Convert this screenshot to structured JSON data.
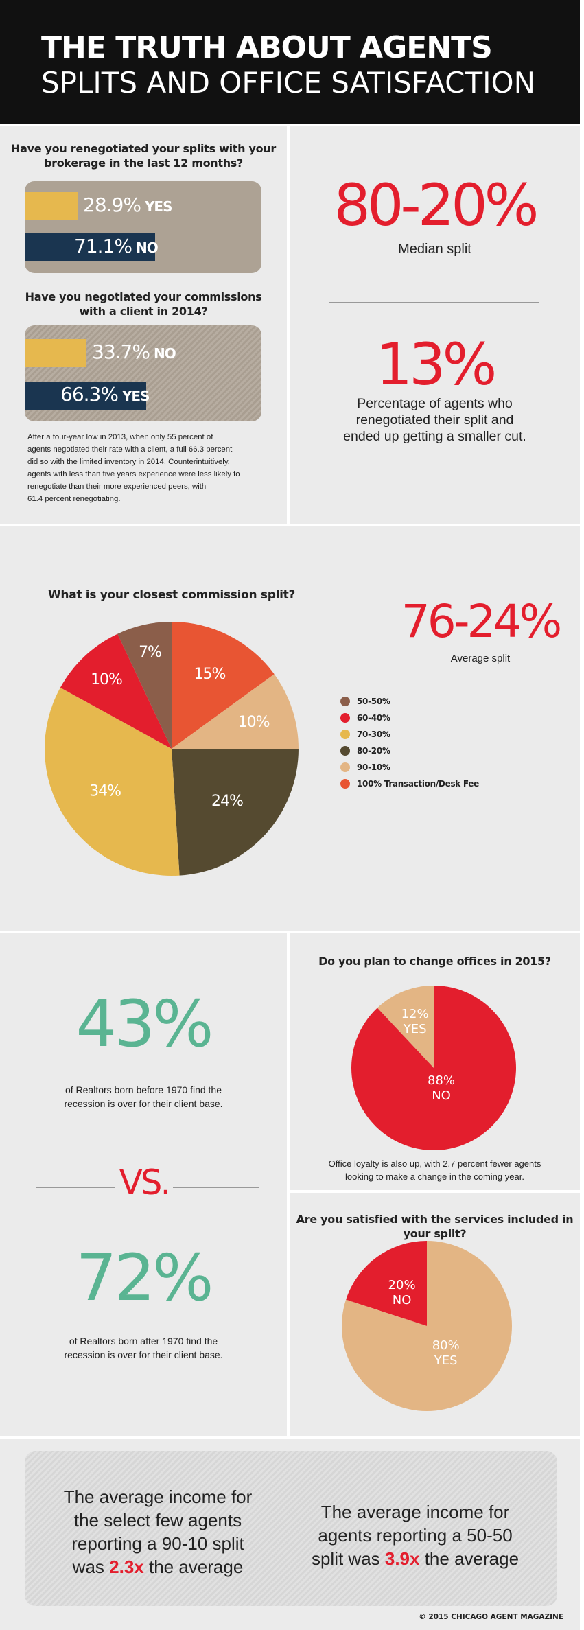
{
  "header": {
    "title_line1": "THE TRUTH ABOUT AGENTS",
    "title_line2": "SPLITS AND OFFICE SATISFACTION"
  },
  "colors": {
    "red": "#e31e2d",
    "green": "#5ab492",
    "gold": "#e6b84e",
    "navy": "#1a3550",
    "brown": "#8b5e4a",
    "olive": "#554a30",
    "tan": "#e3b584",
    "orange": "#e85533",
    "panel_bg": "#ebebeb"
  },
  "section1": {
    "q1": {
      "question_line1": "Have you renegotiated your splits with your",
      "question_line2": "brokerage in the last 12 months?",
      "yes_value": "28.9%",
      "yes_label": "YES",
      "no_value": "71.1%",
      "no_label": "NO"
    },
    "q2": {
      "question_line1": "Have you negotiated your commissions",
      "question_line2": "with a client in 2014?",
      "no_value": "33.7%",
      "no_label": "NO",
      "yes_value": "66.3%",
      "yes_label": "YES"
    },
    "note_lines": [
      "After a four-year low in 2013, when only 55 percent of",
      "agents negotiated their rate with a client, a full 66.3 percent",
      "did so with the limited inventory in 2014. Counterintuitively,",
      "agents with less than five years experience were less likely to",
      "renegotiate than their more experienced peers, with",
      "61.4 percent renegotiating."
    ],
    "median_split": "80-20%",
    "median_label": "Median split",
    "smaller_cut": "13%",
    "smaller_cut_lines": [
      "Percentage of agents who",
      "renegotiated their split and",
      "ended up getting a smaller cut."
    ]
  },
  "section2": {
    "title": "What is your closest commission split?",
    "average_split": "76-24%",
    "average_label": "Average split"
  },
  "chart_data": [
    {
      "type": "bar",
      "title": "Have you renegotiated your splits with your brokerage in the last 12 months?",
      "categories": [
        "YES",
        "NO"
      ],
      "values": [
        28.9,
        71.1
      ],
      "ylim": [
        0,
        100
      ]
    },
    {
      "type": "bar",
      "title": "Have you negotiated your commissions with a client in 2014?",
      "categories": [
        "NO",
        "YES"
      ],
      "values": [
        33.7,
        66.3
      ],
      "ylim": [
        0,
        100
      ]
    },
    {
      "type": "pie",
      "title": "What is your closest commission split?",
      "slices": [
        {
          "label": "100% Transaction/Desk Fee",
          "value": 15,
          "color": "#e85533"
        },
        {
          "label": "90-10%",
          "value": 10,
          "color": "#e3b584"
        },
        {
          "label": "80-20%",
          "value": 24,
          "color": "#554a30"
        },
        {
          "label": "70-30%",
          "value": 34,
          "color": "#e6b84e"
        },
        {
          "label": "60-40%",
          "value": 10,
          "color": "#e31e2d"
        },
        {
          "label": "50-50%",
          "value": 7,
          "color": "#8b5e4a"
        }
      ],
      "legend": [
        "50-50%",
        "60-40%",
        "70-30%",
        "80-20%",
        "90-10%",
        "100% Transaction/Desk Fee"
      ],
      "legend_position": "right"
    },
    {
      "type": "pie",
      "title": "Do you plan to change offices in 2015?",
      "slices": [
        {
          "label": "NO",
          "value": 88,
          "color": "#e31e2d"
        },
        {
          "label": "YES",
          "value": 12,
          "color": "#e3b584"
        }
      ]
    },
    {
      "type": "pie",
      "title": "Are you satisfied with the services included in your split?",
      "slices": [
        {
          "label": "YES",
          "value": 80,
          "color": "#e3b584"
        },
        {
          "label": "NO",
          "value": 20,
          "color": "#e31e2d"
        }
      ]
    }
  ],
  "section3": {
    "before_1970_value": "43%",
    "before_1970_lines": [
      "of Realtors born before 1970 find the",
      "recession is over for their client base."
    ],
    "vs_label": "VS.",
    "after_1970_value": "72%",
    "after_1970_lines": [
      "of Realtors born after 1970 find the",
      "recession is over for their client base."
    ],
    "offices_question": "Do you plan to change offices in 2015?",
    "offices_yes": "12%",
    "offices_yes_label": "YES",
    "offices_no": "88%",
    "offices_no_label": "NO",
    "offices_note_lines": [
      "Office loyalty is also up, with 2.7 percent fewer agents",
      "looking to make a change in the coming year."
    ],
    "services_question": "Are you satisfied with the services included in your split?",
    "services_no": "20%",
    "services_no_label": "NO",
    "services_yes": "80%",
    "services_yes_label": "YES"
  },
  "footer": {
    "left_lines": [
      "The average income for",
      "the select few agents",
      "reporting a 90-10 split"
    ],
    "left_pre": "was ",
    "left_highlight": "2.3x",
    "left_post": " the average",
    "right_lines": [
      "The average income for",
      "agents reporting a 50-50"
    ],
    "right_pre": "split was ",
    "right_highlight": "3.9x",
    "right_post": " the average",
    "copyright": "© 2015 CHICAGO AGENT MAGAZINE"
  }
}
